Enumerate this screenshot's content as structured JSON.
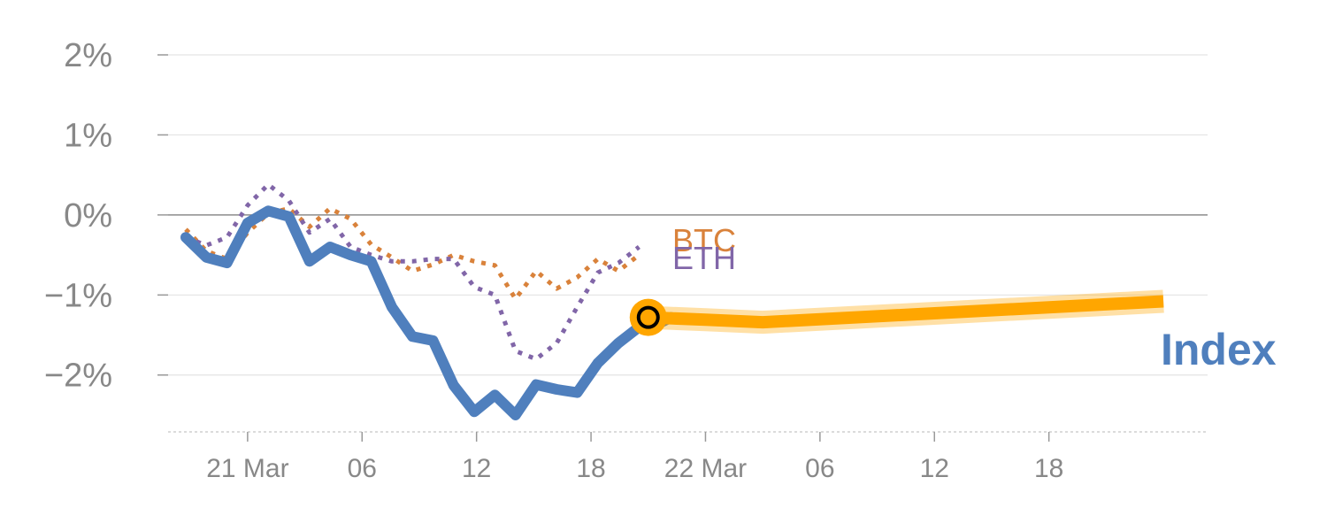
{
  "chart_data": {
    "type": "line",
    "y_unit": "%",
    "ylim": [
      -2.6,
      2.0
    ],
    "y_ticks": [
      {
        "value": 2,
        "label": "2%"
      },
      {
        "value": 1,
        "label": "1%"
      },
      {
        "value": 0,
        "label": "0%"
      },
      {
        "value": -1,
        "label": "−1%"
      },
      {
        "value": -2,
        "label": "−2%"
      }
    ],
    "x_range": [
      -2.7,
      40.5
    ],
    "x_ticks": [
      {
        "x": 0,
        "label": "21 Mar"
      },
      {
        "x": 5,
        "label": "06"
      },
      {
        "x": 10,
        "label": "12"
      },
      {
        "x": 15,
        "label": "18"
      },
      {
        "x": 20,
        "label": "22 Mar"
      },
      {
        "x": 25,
        "label": "06"
      },
      {
        "x": 30,
        "label": "12"
      },
      {
        "x": 35,
        "label": "18"
      }
    ],
    "series": [
      {
        "name": "BTC",
        "label": "BTC",
        "color": "#d9823b",
        "style": "dotted",
        "x": [
          -2.7,
          -1.8,
          -0.9,
          0.0,
          0.9,
          1.8,
          2.7,
          3.6,
          4.5,
          5.4,
          6.3,
          7.2,
          8.1,
          9.0,
          9.9,
          10.8,
          11.7,
          12.6,
          13.5,
          14.4,
          15.3,
          16.2,
          17.1
        ],
        "values": [
          -0.18,
          -0.45,
          -0.55,
          -0.22,
          0.02,
          0.08,
          -0.15,
          0.08,
          -0.05,
          -0.37,
          -0.53,
          -0.7,
          -0.62,
          -0.5,
          -0.58,
          -0.63,
          -1.05,
          -0.7,
          -0.92,
          -0.78,
          -0.55,
          -0.7,
          -0.5
        ]
      },
      {
        "name": "ETH",
        "label": "ETH",
        "color": "#8166a8",
        "style": "dotted",
        "x": [
          -2.7,
          -1.8,
          -0.9,
          0.0,
          0.9,
          1.8,
          2.7,
          3.6,
          4.5,
          5.4,
          6.3,
          7.2,
          8.1,
          9.0,
          9.9,
          10.8,
          11.7,
          12.6,
          13.5,
          14.4,
          15.3,
          16.2,
          17.1
        ],
        "values": [
          -0.28,
          -0.38,
          -0.28,
          0.12,
          0.38,
          0.18,
          -0.22,
          -0.05,
          -0.4,
          -0.5,
          -0.58,
          -0.58,
          -0.55,
          -0.55,
          -0.9,
          -1.0,
          -1.7,
          -1.8,
          -1.6,
          -1.15,
          -0.72,
          -0.6,
          -0.4
        ]
      },
      {
        "name": "Index",
        "label": "Index",
        "color": "#4f7fbd",
        "style": "solid",
        "x": [
          -2.7,
          -1.8,
          -0.9,
          0.0,
          0.9,
          1.8,
          2.7,
          3.6,
          4.5,
          5.4,
          6.3,
          7.2,
          8.1,
          9.0,
          9.9,
          10.8,
          11.7,
          12.6,
          13.5,
          14.4,
          15.3,
          16.2,
          17.1,
          18.0,
          18.5
        ],
        "values": [
          -0.28,
          -0.53,
          -0.6,
          -0.1,
          0.05,
          -0.02,
          -0.58,
          -0.4,
          -0.5,
          -0.58,
          -1.15,
          -1.52,
          -1.57,
          -2.13,
          -2.46,
          -2.25,
          -2.5,
          -2.12,
          -2.18,
          -2.22,
          -1.85,
          -1.6,
          -1.4,
          -1.35,
          -1.28
        ]
      }
    ],
    "forecast": {
      "name": "forecast",
      "color": "#ffa600",
      "x": [
        17.5,
        20.0,
        22.5,
        40.0
      ],
      "values": [
        -1.28,
        -1.31,
        -1.34,
        -1.08
      ]
    },
    "marker": {
      "x": 17.5,
      "y": -1.28,
      "fill": "#ffa600",
      "ring": "#000000"
    }
  }
}
